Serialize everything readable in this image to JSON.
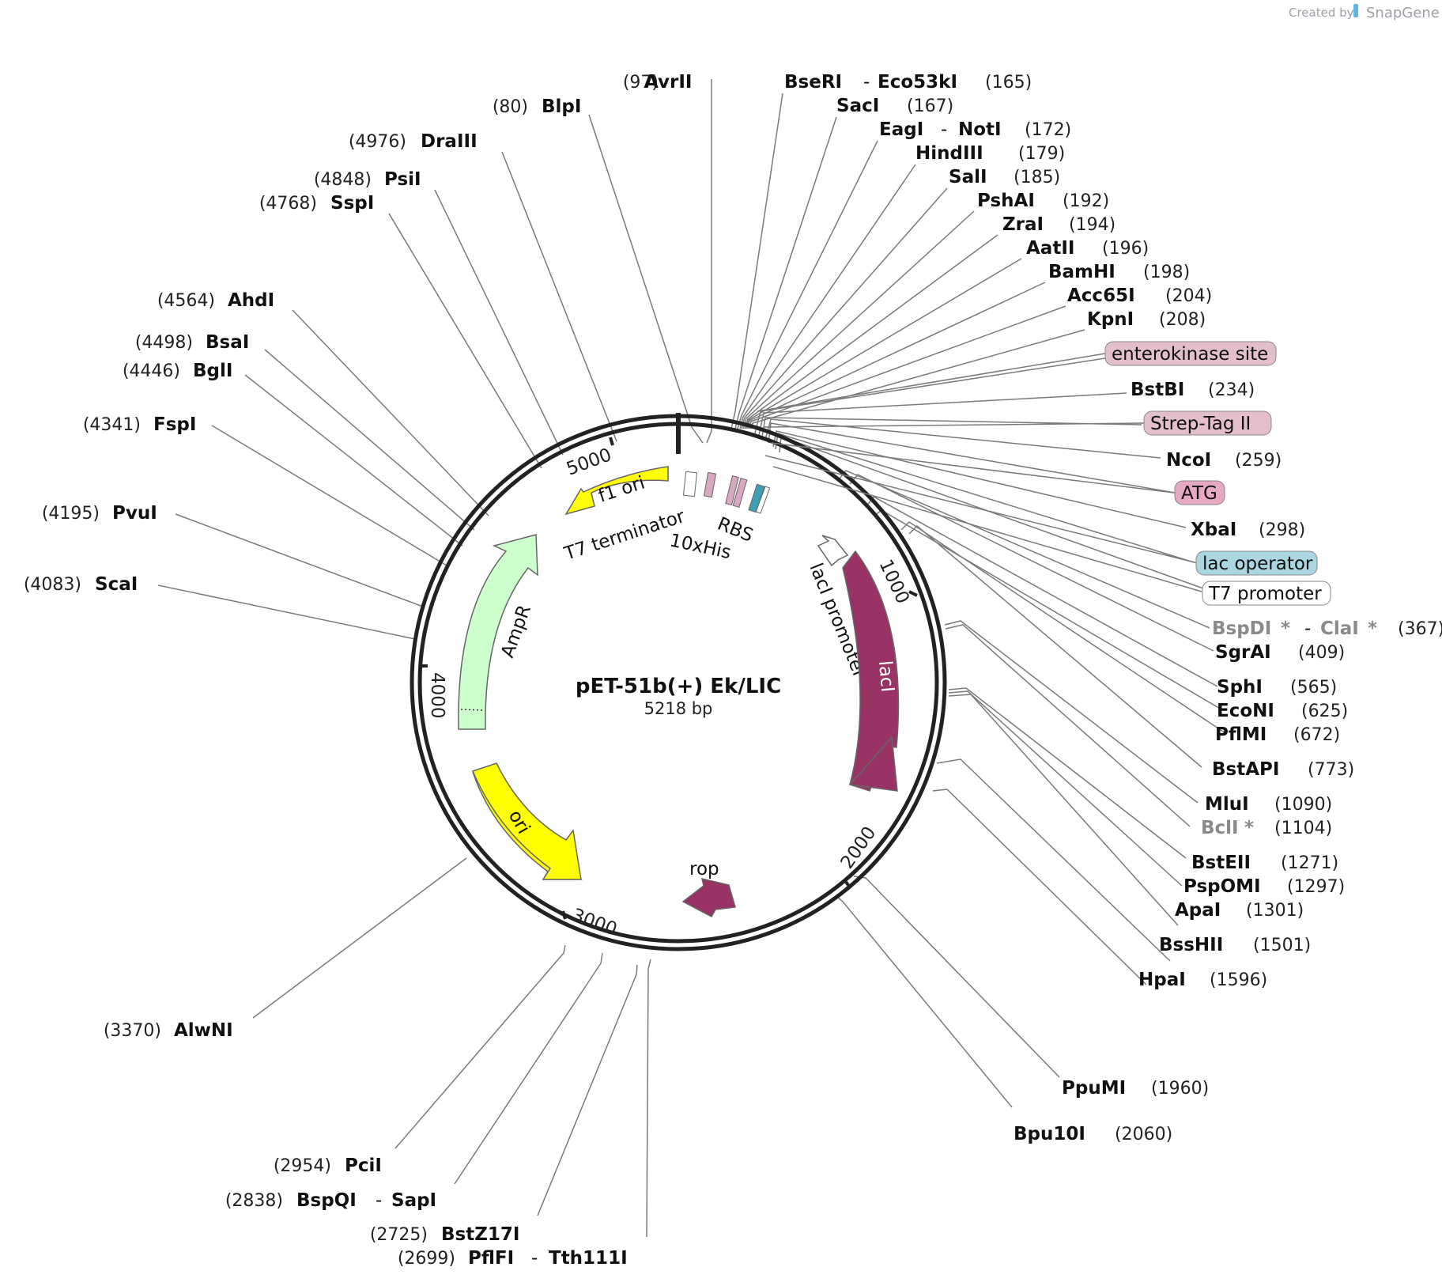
{
  "plasmid": {
    "name": "pET-51b(+) Ek/LIC",
    "size": "5218 bp",
    "length_bp": 5218
  },
  "branding": {
    "created_by": "Created by",
    "app": "SnapGene"
  },
  "ticks": [
    {
      "label": "1000",
      "bp": 1000
    },
    {
      "label": "2000",
      "bp": 2000
    },
    {
      "label": "3000",
      "bp": 3000
    },
    {
      "label": "4000",
      "bp": 4000
    },
    {
      "label": "5000",
      "bp": 5000
    }
  ],
  "sites": [
    {
      "name": "AvrII",
      "pos": "(97)"
    },
    {
      "name": "BlpI",
      "pos": "(80)"
    },
    {
      "name": "DraIII",
      "pos": "(4976)"
    },
    {
      "name": "PsiI",
      "pos": "(4848)"
    },
    {
      "name": "SspI",
      "pos": "(4768)"
    },
    {
      "name": "AhdI",
      "pos": "(4564)"
    },
    {
      "name": "BsaI",
      "pos": "(4498)"
    },
    {
      "name": "BglI",
      "pos": "(4446)"
    },
    {
      "name": "FspI",
      "pos": "(4341)"
    },
    {
      "name": "PvuI",
      "pos": "(4195)"
    },
    {
      "name": "ScaI",
      "pos": "(4083)"
    },
    {
      "name": "AlwNI",
      "pos": "(3370)"
    },
    {
      "name": "PciI",
      "pos": "(2954)"
    },
    {
      "name": "BspQI",
      "name2": "SapI",
      "pos": "(2838)"
    },
    {
      "name": "BstZ17I",
      "pos": "(2725)"
    },
    {
      "name": "PflFI",
      "name2": "Tth111I",
      "pos": "(2699)"
    },
    {
      "name": "BseRI",
      "name2": "Eco53kI",
      "pos": "(165)"
    },
    {
      "name": "SacI",
      "pos": "(167)"
    },
    {
      "name": "EagI",
      "name2": "NotI",
      "pos": "(172)"
    },
    {
      "name": "HindIII",
      "pos": "(179)"
    },
    {
      "name": "SalI",
      "pos": "(185)"
    },
    {
      "name": "PshAI",
      "pos": "(192)"
    },
    {
      "name": "ZraI",
      "pos": "(194)"
    },
    {
      "name": "AatII",
      "pos": "(196)"
    },
    {
      "name": "BamHI",
      "pos": "(198)"
    },
    {
      "name": "Acc65I",
      "pos": "(204)"
    },
    {
      "name": "KpnI",
      "pos": "(208)"
    },
    {
      "name": "BstBI",
      "pos": "(234)"
    },
    {
      "name": "NcoI",
      "pos": "(259)"
    },
    {
      "name": "XbaI",
      "pos": "(298)"
    },
    {
      "name": "BspDI",
      "name2": "ClaI",
      "pos": "(367)",
      "dam": true
    },
    {
      "name": "SgrAI",
      "pos": "(409)"
    },
    {
      "name": "SphI",
      "pos": "(565)"
    },
    {
      "name": "EcoNI",
      "pos": "(625)"
    },
    {
      "name": "PflMI",
      "pos": "(672)"
    },
    {
      "name": "BstAPI",
      "pos": "(773)"
    },
    {
      "name": "MluI",
      "pos": "(1090)"
    },
    {
      "name": "BclI",
      "pos": "(1104)",
      "dam": true
    },
    {
      "name": "BstEII",
      "pos": "(1271)"
    },
    {
      "name": "PspOMI",
      "pos": "(1297)"
    },
    {
      "name": "ApaI",
      "pos": "(1301)"
    },
    {
      "name": "BssHII",
      "pos": "(1501)"
    },
    {
      "name": "HpaI",
      "pos": "(1596)"
    },
    {
      "name": "PpuMI",
      "pos": "(1960)"
    },
    {
      "name": "Bpu10I",
      "pos": "(2060)"
    }
  ],
  "star": "*",
  "boxed_features": [
    {
      "label": "enterokinase site",
      "color": "#e3bfcc"
    },
    {
      "label": "Strep-Tag II",
      "color": "#e3bfcc"
    },
    {
      "label": "ATG",
      "color": "#e7a9c1"
    },
    {
      "label": "lac operator",
      "color": "#a9d6e0"
    },
    {
      "label": "T7 promoter",
      "color": "#ffffff"
    }
  ],
  "features": [
    {
      "label": "f1 ori",
      "color": "#ffff00"
    },
    {
      "label": "T7 terminator"
    },
    {
      "label": "10xHis"
    },
    {
      "label": "RBS"
    },
    {
      "label": "AmpR",
      "color": "#ccffcc"
    },
    {
      "label": "ori",
      "color": "#ffff00"
    },
    {
      "label": "lacI",
      "color": "#993366"
    },
    {
      "label": "lacI promoter"
    },
    {
      "label": "rop",
      "color": "#993366"
    }
  ]
}
